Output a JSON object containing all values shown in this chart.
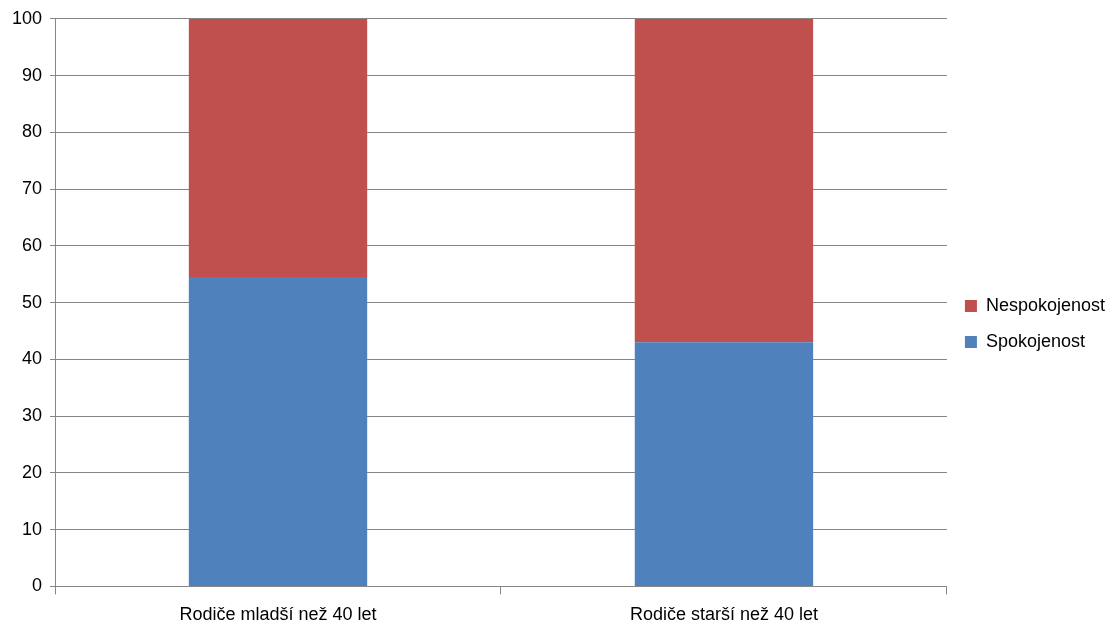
{
  "chart_data": {
    "type": "bar",
    "stacked": true,
    "categories": [
      "Rodiče mladší než 40 let",
      "Rodiče starší než 40 let"
    ],
    "series": [
      {
        "name": "Spokojenost",
        "color": "#4f81bd",
        "values": [
          54.5,
          43
        ]
      },
      {
        "name": "Nespokojenost",
        "color": "#c0504d",
        "values": [
          45.5,
          57
        ]
      }
    ],
    "ylim": [
      0,
      100
    ],
    "yticks": [
      0,
      10,
      20,
      30,
      40,
      50,
      60,
      70,
      80,
      90,
      100
    ],
    "grid": "y",
    "legend": "right"
  }
}
